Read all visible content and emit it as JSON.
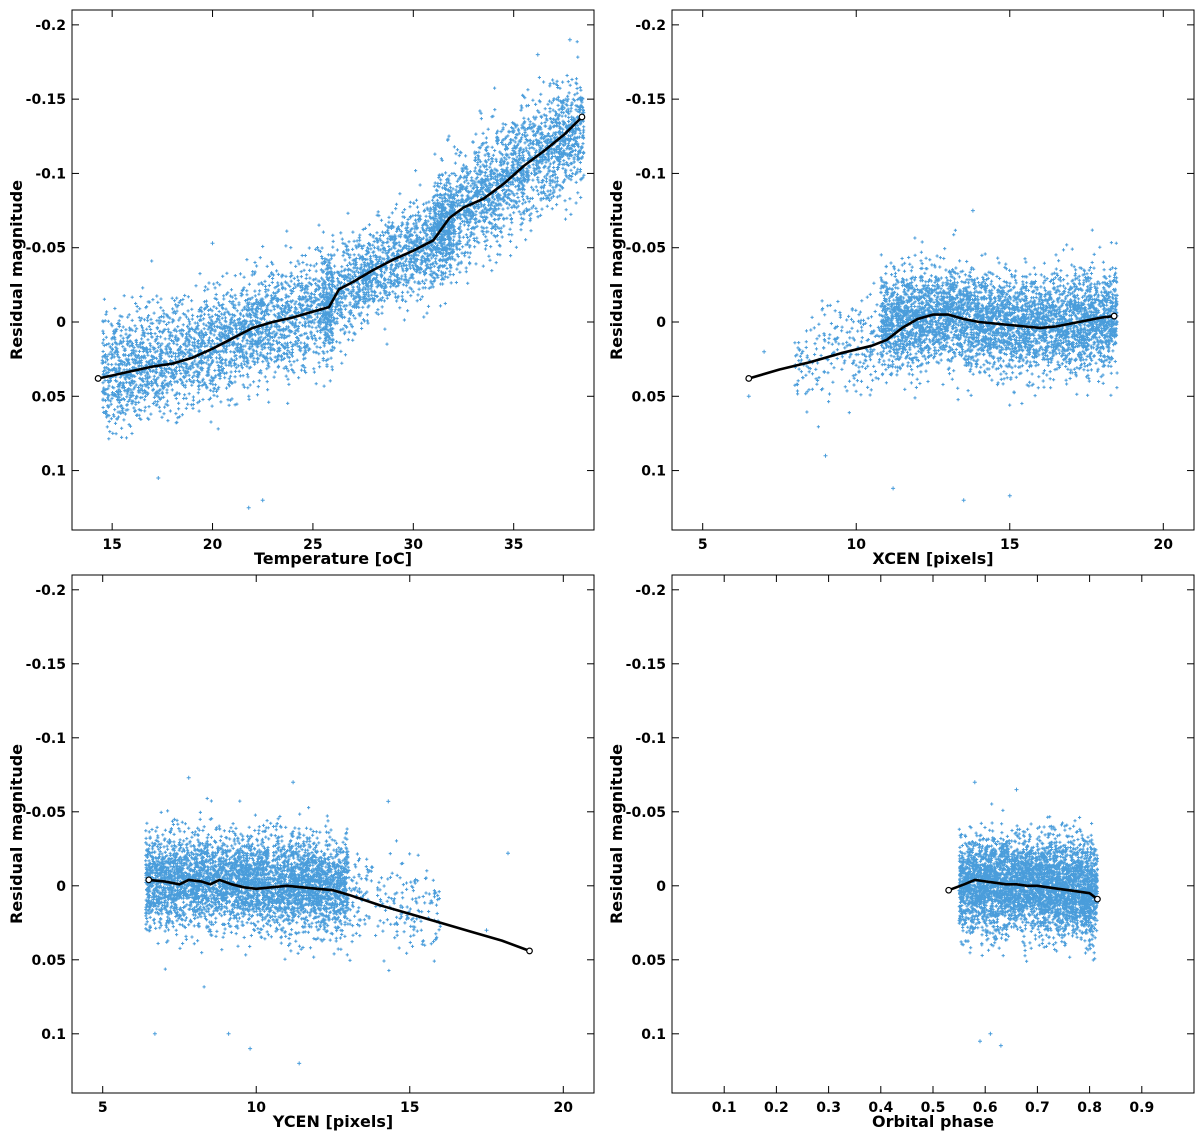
{
  "chart_data": [
    {
      "type": "scatter",
      "title": "",
      "xlabel": "Temperature [oC]",
      "ylabel": "Residual magnitude",
      "xlim": [
        13,
        39
      ],
      "ylim": [
        0.14,
        -0.21
      ],
      "xticks": [
        15,
        20,
        25,
        30,
        35
      ],
      "xtick_labels": [
        "15",
        "20",
        "25",
        "30",
        "35"
      ],
      "yticks": [
        -0.2,
        -0.15,
        -0.1,
        -0.05,
        0,
        0.05,
        0.1
      ],
      "ytick_labels": [
        "-0.2",
        "-0.15",
        "-0.1",
        "-0.05",
        "0",
        "0.05",
        "0.1"
      ],
      "cloud": [
        {
          "x_range": [
            14.5,
            26
          ],
          "center": [
            [
              14.5,
              0.035
            ],
            [
              18,
              0.025
            ],
            [
              22,
              0.005
            ],
            [
              26,
              -0.01
            ]
          ],
          "spread": 0.03,
          "n": 2600
        },
        {
          "x_range": [
            25.5,
            32
          ],
          "center": [
            [
              25.5,
              -0.01
            ],
            [
              28,
              -0.035
            ],
            [
              32,
              -0.06
            ]
          ],
          "spread": 0.026,
          "n": 1500
        },
        {
          "x_range": [
            31,
            38.5
          ],
          "center": [
            [
              31,
              -0.065
            ],
            [
              34,
              -0.09
            ],
            [
              38.5,
              -0.13
            ]
          ],
          "spread": 0.03,
          "n": 2000
        }
      ],
      "trend": {
        "name": "smoothed fit",
        "x": [
          14.3,
          15,
          16,
          17,
          18,
          19,
          20,
          21,
          22,
          23,
          24,
          25,
          25.8,
          26.3,
          27,
          28,
          29,
          30,
          31,
          31.8,
          32.5,
          33.5,
          34.5,
          35.5,
          36.5,
          37.5,
          38.4
        ],
        "y": [
          0.038,
          0.036,
          0.033,
          0.03,
          0.028,
          0.024,
          0.018,
          0.011,
          0.004,
          0.0,
          -0.003,
          -0.007,
          -0.01,
          -0.022,
          -0.027,
          -0.035,
          -0.042,
          -0.048,
          -0.055,
          -0.07,
          -0.077,
          -0.083,
          -0.093,
          -0.105,
          -0.115,
          -0.126,
          -0.138
        ]
      },
      "outliers": [
        {
          "x": 21.8,
          "y": 0.125
        },
        {
          "x": 22.5,
          "y": 0.12
        },
        {
          "x": 17.3,
          "y": 0.105
        },
        {
          "x": 20.0,
          "y": -0.053
        },
        {
          "x": 37.8,
          "y": -0.19
        },
        {
          "x": 36.2,
          "y": -0.18
        }
      ]
    },
    {
      "type": "scatter",
      "title": "",
      "xlabel": "XCEN [pixels]",
      "ylabel": "Residual magnitude",
      "xlim": [
        4,
        21
      ],
      "ylim": [
        0.14,
        -0.21
      ],
      "xticks": [
        5,
        10,
        15,
        20
      ],
      "xtick_labels": [
        "5",
        "10",
        "15",
        "20"
      ],
      "yticks": [
        -0.2,
        -0.15,
        -0.1,
        -0.05,
        0,
        0.05,
        0.1
      ],
      "ytick_labels": [
        "-0.2",
        "-0.15",
        "-0.1",
        "-0.05",
        "0",
        "0.05",
        "0.1"
      ],
      "cloud": [
        {
          "x_range": [
            10.8,
            18.5
          ],
          "center": [
            [
              10.8,
              0.0
            ],
            [
              13,
              -0.005
            ],
            [
              15,
              0.003
            ],
            [
              18.5,
              -0.003
            ]
          ],
          "spread": 0.027,
          "n": 4200
        },
        {
          "x_range": [
            8,
            11
          ],
          "center": [
            [
              8,
              0.025
            ],
            [
              11,
              0.01
            ]
          ],
          "spread": 0.025,
          "n": 250
        }
      ],
      "trend": {
        "name": "smoothed fit",
        "x": [
          6.5,
          7.5,
          8.5,
          9.5,
          10.5,
          11,
          11.5,
          12,
          12.5,
          13,
          13.5,
          14,
          14.5,
          15,
          15.5,
          16,
          16.5,
          17,
          17.5,
          18,
          18.4
        ],
        "y": [
          0.038,
          0.032,
          0.027,
          0.021,
          0.016,
          0.012,
          0.004,
          -0.002,
          -0.005,
          -0.005,
          -0.002,
          0.0,
          0.001,
          0.002,
          0.003,
          0.004,
          0.003,
          0.001,
          -0.001,
          -0.003,
          -0.004
        ]
      },
      "outliers": [
        {
          "x": 13.5,
          "y": 0.12
        },
        {
          "x": 15.0,
          "y": 0.117
        },
        {
          "x": 11.2,
          "y": 0.112
        },
        {
          "x": 13.8,
          "y": -0.075
        },
        {
          "x": 9.0,
          "y": 0.09
        },
        {
          "x": 6.5,
          "y": 0.05
        },
        {
          "x": 7.0,
          "y": 0.02
        }
      ]
    },
    {
      "type": "scatter",
      "title": "",
      "xlabel": "YCEN [pixels]",
      "ylabel": "Residual magnitude",
      "xlim": [
        4,
        21
      ],
      "ylim": [
        0.14,
        -0.21
      ],
      "xticks": [
        5,
        10,
        15,
        20
      ],
      "xtick_labels": [
        "5",
        "10",
        "15",
        "20"
      ],
      "yticks": [
        -0.2,
        -0.15,
        -0.1,
        -0.05,
        0,
        0.05,
        0.1
      ],
      "ytick_labels": [
        "-0.2",
        "-0.15",
        "-0.1",
        "-0.05",
        "0",
        "0.05",
        "0.1"
      ],
      "cloud": [
        {
          "x_range": [
            6.4,
            13
          ],
          "center": [
            [
              6.4,
              -0.003
            ],
            [
              9,
              -0.003
            ],
            [
              13,
              0.0
            ]
          ],
          "spread": 0.026,
          "n": 4200
        },
        {
          "x_range": [
            13,
            16
          ],
          "center": [
            [
              13,
              0.005
            ],
            [
              16,
              0.02
            ]
          ],
          "spread": 0.024,
          "n": 220
        }
      ],
      "trend": {
        "name": "smoothed fit",
        "x": [
          6.5,
          7.0,
          7.5,
          7.8,
          8.2,
          8.5,
          8.8,
          9.2,
          9.6,
          10.0,
          10.5,
          11.0,
          11.5,
          12.0,
          12.5,
          13.0,
          14.0,
          15.0,
          16.0,
          17.0,
          18.0,
          18.9
        ],
        "y": [
          -0.004,
          -0.003,
          -0.001,
          -0.004,
          -0.003,
          -0.001,
          -0.004,
          -0.001,
          0.001,
          0.002,
          0.001,
          0.0,
          0.001,
          0.002,
          0.003,
          0.006,
          0.013,
          0.019,
          0.025,
          0.031,
          0.037,
          0.044
        ]
      },
      "outliers": [
        {
          "x": 11.4,
          "y": 0.12
        },
        {
          "x": 9.1,
          "y": 0.1
        },
        {
          "x": 6.7,
          "y": 0.1
        },
        {
          "x": 9.8,
          "y": 0.11
        },
        {
          "x": 7.8,
          "y": -0.073
        },
        {
          "x": 11.2,
          "y": -0.07
        },
        {
          "x": 18.2,
          "y": -0.022
        },
        {
          "x": 17.5,
          "y": 0.03
        },
        {
          "x": 14.3,
          "y": -0.057
        }
      ]
    },
    {
      "type": "scatter",
      "title": "",
      "xlabel": "Orbital phase",
      "ylabel": "Residual magnitude",
      "xlim": [
        0,
        1
      ],
      "ylim": [
        0.14,
        -0.21
      ],
      "xticks": [
        0.1,
        0.2,
        0.3,
        0.4,
        0.5,
        0.6,
        0.7,
        0.8,
        0.9
      ],
      "xtick_labels": [
        "0.1",
        "0.2",
        "0.3",
        "0.4",
        "0.5",
        "0.6",
        "0.7",
        "0.8",
        "0.9"
      ],
      "yticks": [
        -0.2,
        -0.15,
        -0.1,
        -0.05,
        0,
        0.05,
        0.1
      ],
      "ytick_labels": [
        "-0.2",
        "-0.15",
        "-0.1",
        "-0.05",
        "0",
        "0.05",
        "0.1"
      ],
      "cloud": [
        {
          "x_range": [
            0.55,
            0.815
          ],
          "center": [
            [
              0.55,
              0.0
            ],
            [
              0.68,
              -0.002
            ],
            [
              0.815,
              0.004
            ]
          ],
          "spread": 0.026,
          "n": 4000
        }
      ],
      "trend": {
        "name": "smoothed fit",
        "x": [
          0.53,
          0.56,
          0.58,
          0.6,
          0.62,
          0.64,
          0.66,
          0.68,
          0.7,
          0.72,
          0.74,
          0.76,
          0.78,
          0.8,
          0.815
        ],
        "y": [
          0.003,
          -0.001,
          -0.004,
          -0.003,
          -0.002,
          -0.001,
          -0.001,
          0.0,
          0.0,
          0.001,
          0.002,
          0.003,
          0.004,
          0.005,
          0.009
        ]
      },
      "outliers": [
        {
          "x": 0.59,
          "y": 0.105
        },
        {
          "x": 0.63,
          "y": 0.108
        },
        {
          "x": 0.61,
          "y": 0.1
        },
        {
          "x": 0.58,
          "y": -0.07
        },
        {
          "x": 0.66,
          "y": -0.065
        }
      ]
    }
  ]
}
